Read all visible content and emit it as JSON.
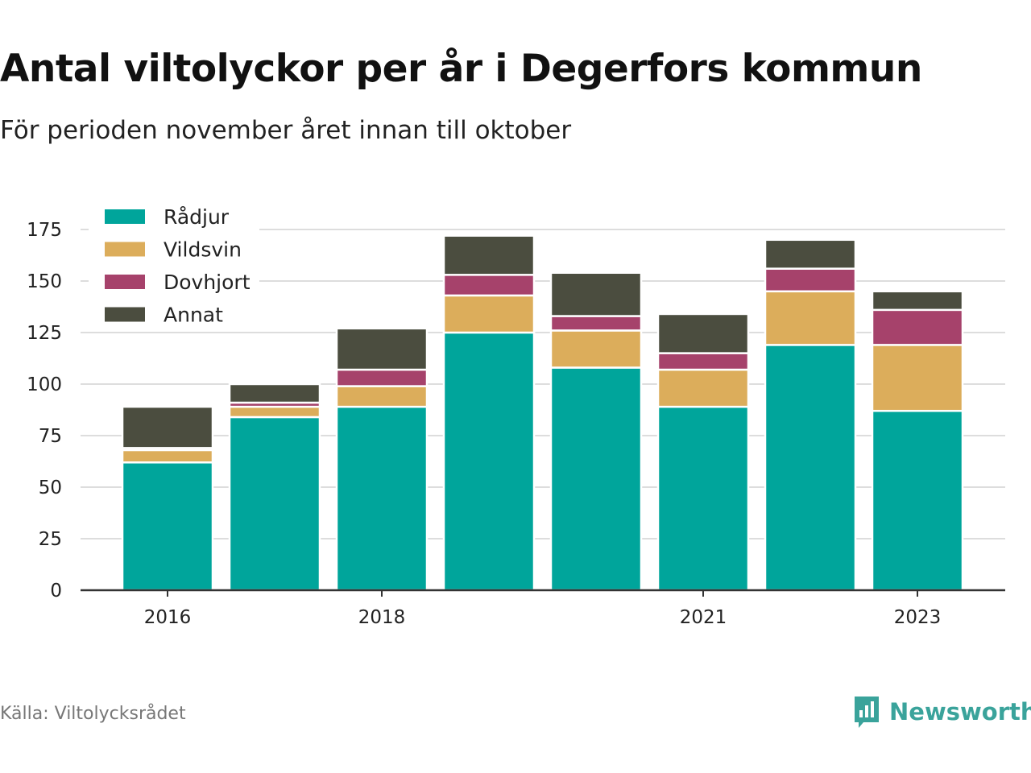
{
  "title": "Antal viltolyckor per år i Degerfors kommun",
  "subtitle": "För perioden november året innan till oktober",
  "source": "Källa: Viltolycksrådet",
  "brand": "Newsworthy",
  "colors": {
    "Rådjur": "#00a59b",
    "Vildsvin": "#dcad5b",
    "Dovhjort": "#a6426b",
    "Annat": "#4b4d3f",
    "grid": "#dddddd",
    "axis": "#333333",
    "brand": "#3aa39b"
  },
  "chart_data": {
    "type": "bar",
    "stacked": true,
    "categories": [
      "2016",
      "2017",
      "2018",
      "2019",
      "2020",
      "2021",
      "2022",
      "2023"
    ],
    "x_tick_labels": [
      "2016",
      "",
      "2018",
      "",
      "",
      "2021",
      "",
      "2023"
    ],
    "series": [
      {
        "name": "Rådjur",
        "values": [
          62,
          84,
          89,
          125,
          108,
          89,
          119,
          87
        ]
      },
      {
        "name": "Vildsvin",
        "values": [
          6,
          5,
          10,
          18,
          18,
          18,
          26,
          32
        ]
      },
      {
        "name": "Dovhjort",
        "values": [
          1,
          2,
          8,
          10,
          7,
          8,
          11,
          17
        ]
      },
      {
        "name": "Annat",
        "values": [
          20,
          9,
          20,
          19,
          21,
          19,
          14,
          9
        ]
      }
    ],
    "ylim": [
      0,
      175
    ],
    "yticks": [
      0,
      25,
      50,
      75,
      100,
      125,
      150,
      175
    ],
    "grid": true,
    "legend": "top-left"
  }
}
